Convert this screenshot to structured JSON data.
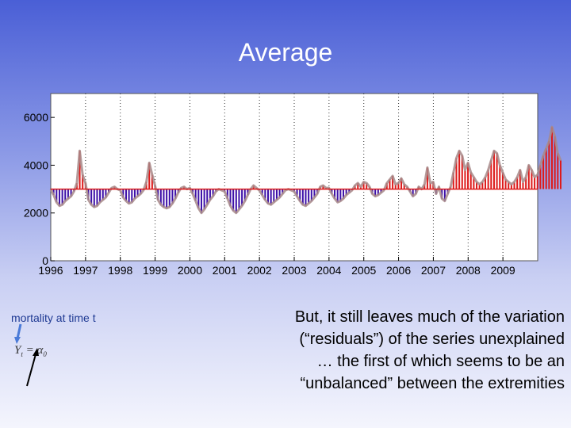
{
  "slide": {
    "title": "Average",
    "caption": "mortality at time t",
    "formula": "Yt = α0",
    "body_lines": [
      "But, it still leaves much of the variation",
      "(“residuals”) of the series unexplained",
      "… the first of which seems to be an",
      "“unbalanced” between the extremities"
    ]
  },
  "colors": {
    "above": "#dd1a1a",
    "below": "#3d10a8",
    "series_line": "#a88a8a",
    "arrow": "#4a7ad8"
  },
  "chart_data": {
    "type": "bar",
    "description_title": "",
    "baseline": 3000,
    "xlim": [
      1996,
      2010
    ],
    "ylim": [
      0,
      7000
    ],
    "x_ticks": [
      "1996",
      "1997",
      "1998",
      "1999",
      "2000",
      "2001",
      "2002",
      "2003",
      "2004",
      "2005",
      "2006",
      "2007",
      "2008",
      "2009"
    ],
    "y_ticks": [
      "0",
      "2000",
      "4000",
      "6000"
    ],
    "y_tick_values": [
      0,
      2000,
      4000,
      6000
    ],
    "x_gridlines_dotted": true,
    "start": 1996.0,
    "step": 0.0833,
    "values": [
      3000,
      2750,
      2450,
      2300,
      2350,
      2500,
      2600,
      2700,
      2900,
      3250,
      4600,
      3600,
      3250,
      2550,
      2350,
      2250,
      2300,
      2450,
      2550,
      2650,
      2850,
      3050,
      3100,
      3000,
      2950,
      2650,
      2500,
      2400,
      2450,
      2600,
      2700,
      2800,
      2950,
      3300,
      4100,
      3600,
      3150,
      2550,
      2350,
      2250,
      2200,
      2250,
      2400,
      2600,
      2850,
      3050,
      3100,
      3000,
      3050,
      2800,
      2500,
      2200,
      2000,
      2150,
      2350,
      2550,
      2700,
      2900,
      3000,
      2950,
      2900,
      2600,
      2300,
      2100,
      2000,
      2150,
      2300,
      2500,
      2750,
      3000,
      3150,
      3050,
      2950,
      2750,
      2550,
      2400,
      2350,
      2450,
      2550,
      2650,
      2800,
      2950,
      3000,
      2950,
      2900,
      2700,
      2500,
      2350,
      2300,
      2400,
      2500,
      2650,
      2800,
      3100,
      3150,
      3050,
      3050,
      2800,
      2600,
      2450,
      2500,
      2600,
      2750,
      2850,
      2950,
      3150,
      3250,
      3100,
      3300,
      3250,
      3100,
      2800,
      2700,
      2750,
      2850,
      2950,
      3250,
      3400,
      3550,
      3200,
      3250,
      3450,
      3200,
      3100,
      2900,
      2700,
      2800,
      3100,
      3000,
      3200,
      3900,
      3250,
      3300,
      2800,
      3100,
      2600,
      2500,
      2800,
      3100,
      3700,
      4300,
      4600,
      4400,
      3800,
      4100,
      3700,
      3500,
      3300,
      3200,
      3300,
      3500,
      3800,
      4200,
      4600,
      4500,
      4000,
      3700,
      3400,
      3300,
      3200,
      3300,
      3500,
      3800,
      3300,
      3500,
      4000,
      3800,
      3500,
      3600,
      4000,
      4400,
      4700,
      5000,
      5600,
      5200,
      4500,
      4200
    ]
  }
}
